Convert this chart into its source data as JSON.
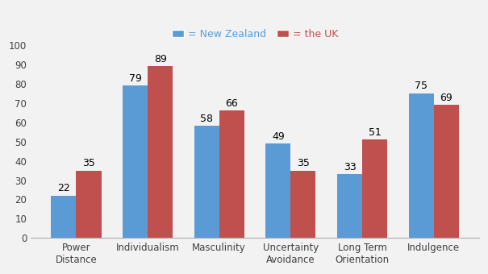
{
  "categories": [
    "Power\nDistance",
    "Individualism",
    "Masculinity",
    "Uncertainty\nAvoidance",
    "Long Term\nOrientation",
    "Indulgence"
  ],
  "nz_values": [
    22,
    79,
    58,
    49,
    33,
    75
  ],
  "uk_values": [
    35,
    89,
    66,
    35,
    51,
    69
  ],
  "nz_color": "#5B9BD5",
  "uk_color": "#C0504D",
  "legend_nz": "= New Zealand",
  "legend_uk": "= the UK",
  "ylim": [
    0,
    100
  ],
  "yticks": [
    0,
    10,
    20,
    30,
    40,
    50,
    60,
    70,
    80,
    90,
    100
  ],
  "bar_width": 0.35,
  "background_color": "#F2F2F2"
}
